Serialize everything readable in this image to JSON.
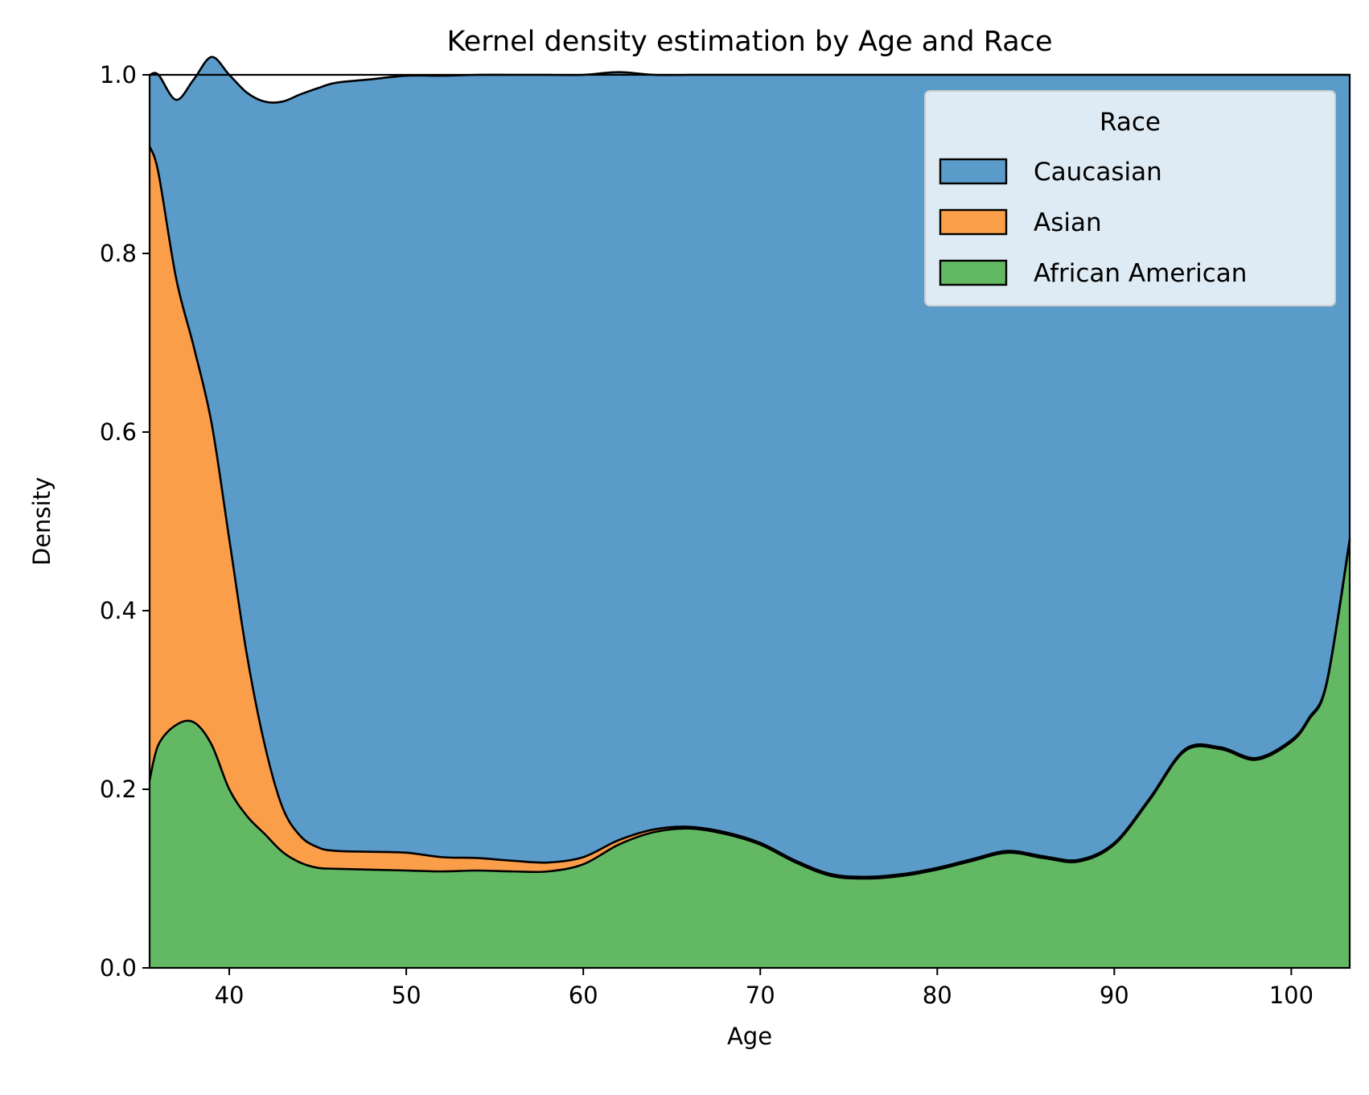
{
  "chart_data": {
    "type": "area",
    "title": "Kernel density estimation by Age and Race",
    "xlabel": "Age",
    "ylabel": "Density",
    "xlim": [
      35.5,
      103.3
    ],
    "ylim": [
      0,
      1
    ],
    "xticks": [
      40,
      50,
      60,
      70,
      80,
      90,
      100
    ],
    "yticks": [
      0.0,
      0.2,
      0.4,
      0.6,
      0.8,
      1.0
    ],
    "ytick_labels": [
      "0.0",
      "0.2",
      "0.4",
      "0.6",
      "0.8",
      "1.0"
    ],
    "grid": false,
    "stacked": true,
    "legend": {
      "title": "Race",
      "placement": "top-right"
    },
    "x": [
      35.5,
      36,
      37,
      38,
      39,
      40,
      41,
      42,
      43,
      44,
      45,
      46,
      48,
      50,
      52,
      54,
      56,
      58,
      60,
      62,
      64,
      66,
      68,
      70,
      72,
      74,
      76,
      78,
      80,
      82,
      84,
      86,
      88,
      90,
      92,
      94,
      96,
      98,
      100,
      101,
      102,
      103.3
    ],
    "series": [
      {
        "name": "Caucasian",
        "color": "#5a9bc9",
        "values": [
          0.08,
          0.11,
          0.2,
          0.3,
          0.41,
          0.52,
          0.63,
          0.72,
          0.79,
          0.83,
          0.85,
          0.86,
          0.865,
          0.87,
          0.875,
          0.877,
          0.88,
          0.882,
          0.876,
          0.86,
          0.845,
          0.842,
          0.848,
          0.86,
          0.88,
          0.895,
          0.898,
          0.895,
          0.888,
          0.878,
          0.869,
          0.875,
          0.879,
          0.86,
          0.81,
          0.755,
          0.753,
          0.765,
          0.745,
          0.72,
          0.68,
          0.52
        ]
      },
      {
        "name": "Asian",
        "color": "#fb9e4a",
        "values": [
          0.71,
          0.64,
          0.5,
          0.42,
          0.36,
          0.28,
          0.18,
          0.1,
          0.05,
          0.03,
          0.023,
          0.02,
          0.02,
          0.02,
          0.016,
          0.014,
          0.012,
          0.01,
          0.008,
          0.005,
          0.003,
          0.002,
          0.002,
          0.002,
          0.002,
          0.002,
          0.002,
          0.002,
          0.002,
          0.002,
          0.002,
          0.002,
          0.002,
          0.002,
          0.002,
          0.002,
          0.002,
          0.002,
          0.002,
          0.002,
          0.002,
          0.002
        ]
      },
      {
        "name": "African American",
        "color": "#63b863",
        "values": [
          0.21,
          0.25,
          0.272,
          0.275,
          0.25,
          0.2,
          0.17,
          0.15,
          0.13,
          0.118,
          0.112,
          0.111,
          0.11,
          0.109,
          0.108,
          0.109,
          0.108,
          0.108,
          0.116,
          0.138,
          0.152,
          0.156,
          0.15,
          0.138,
          0.118,
          0.103,
          0.1,
          0.103,
          0.11,
          0.12,
          0.129,
          0.123,
          0.119,
          0.138,
          0.188,
          0.243,
          0.245,
          0.233,
          0.253,
          0.278,
          0.318,
          0.478
        ]
      }
    ]
  }
}
